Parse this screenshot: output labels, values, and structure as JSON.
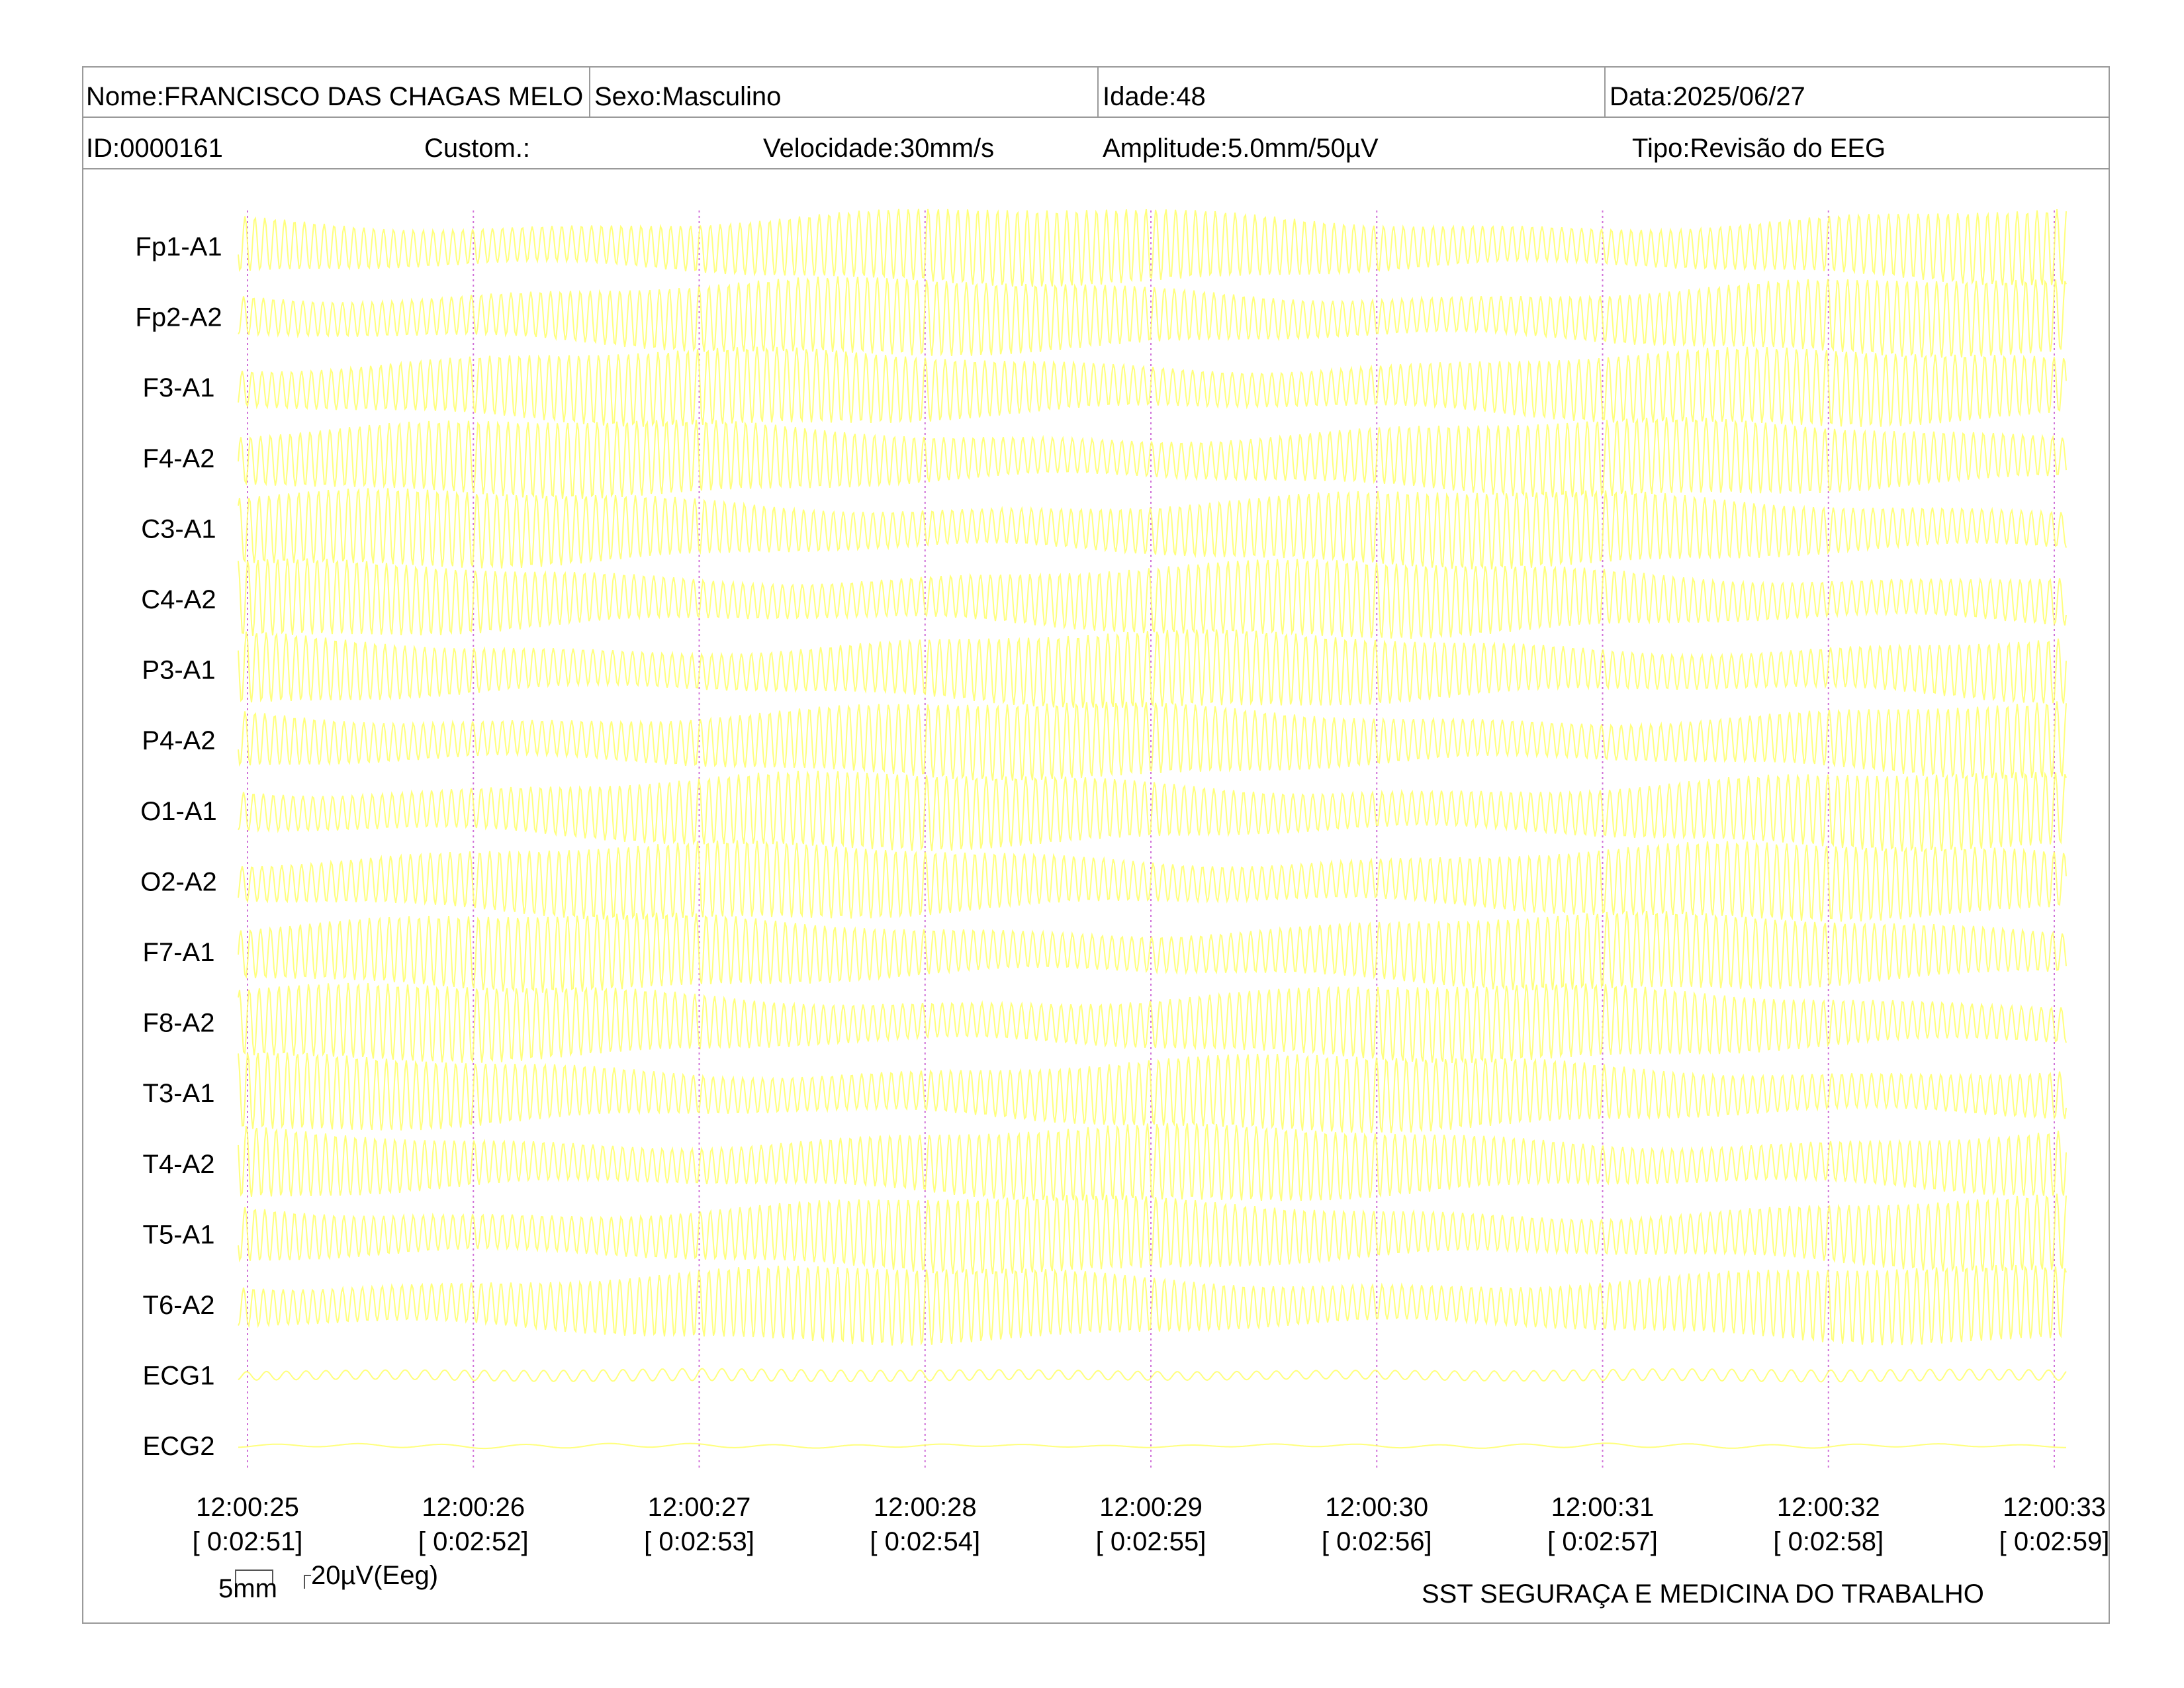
{
  "header": {
    "nome": "Nome:FRANCISCO DAS CHAGAS MELO",
    "sexo": "Sexo:Masculino",
    "idade": "Idade:48",
    "data": "Data:2025/06/27",
    "id": "ID:0000161",
    "custom": "Custom.:",
    "velocidade": "Velocidade:30mm/s",
    "amplitude": "Amplitude:5.0mm/50µV",
    "tipo": "Tipo:Revisão do EEG"
  },
  "channels": [
    "Fp1-A1",
    "Fp2-A2",
    "F3-A1",
    "F4-A2",
    "C3-A1",
    "C4-A2",
    "P3-A1",
    "P4-A2",
    "O1-A1",
    "O2-A2",
    "F7-A1",
    "F8-A2",
    "T3-A1",
    "T4-A2",
    "T5-A1",
    "T6-A2",
    "ECG1",
    "ECG2"
  ],
  "time_marks": [
    {
      "time": "12:00:25",
      "elapsed": "[ 0:02:51]"
    },
    {
      "time": "12:00:26",
      "elapsed": "[ 0:02:52]"
    },
    {
      "time": "12:00:27",
      "elapsed": "[ 0:02:53]"
    },
    {
      "time": "12:00:28",
      "elapsed": "[ 0:02:54]"
    },
    {
      "time": "12:00:29",
      "elapsed": "[ 0:02:55]"
    },
    {
      "time": "12:00:30",
      "elapsed": "[ 0:02:56]"
    },
    {
      "time": "12:00:31",
      "elapsed": "[ 0:02:57]"
    },
    {
      "time": "12:00:32",
      "elapsed": "[ 0:02:58]"
    },
    {
      "time": "12:00:33",
      "elapsed": "[ 0:02:59]"
    }
  ],
  "scale": {
    "time_label": "5mm",
    "amp_label": "20µV(Eeg)"
  },
  "footer": {
    "organization": "SST SEGURAÇA E MEDICINA DO TRABALHO"
  },
  "colors": {
    "trace": "#ffff66",
    "second_marker": "#d070d8",
    "border": "#9a9a9a"
  }
}
